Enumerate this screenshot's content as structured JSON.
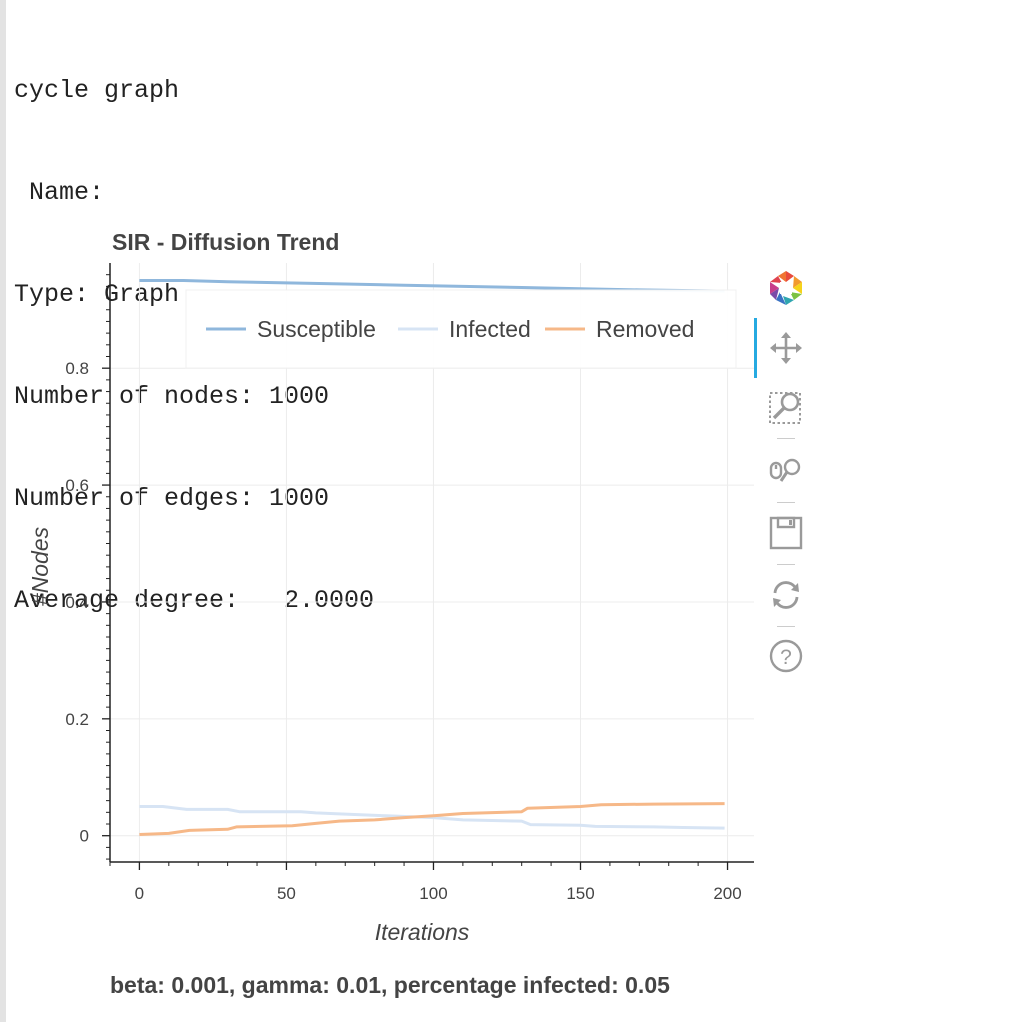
{
  "console": {
    "lines": [
      "cycle graph",
      " Name: ",
      "Type: Graph",
      "Number of nodes: 1000",
      "Number of edges: 1000",
      "Average degree:   2.0000"
    ]
  },
  "caption": "beta: 0.001, gamma: 0.01, percentage infected: 0.05",
  "toolbar": {
    "tools": [
      "bokeh-logo-icon",
      "pan-icon",
      "box-zoom-icon",
      "wheel-zoom-icon",
      "save-icon",
      "reset-icon",
      "help-icon"
    ],
    "active": "pan"
  },
  "colors": {
    "susceptible": "#8fb7dc",
    "infected": "#d7e4f4",
    "removed": "#f6b888",
    "active_tool": "#26aae1"
  },
  "chart_data": {
    "type": "line",
    "title": "SIR - Diffusion Trend",
    "xlabel": "Iterations",
    "ylabel": "#Nodes",
    "xlim": [
      -10,
      209
    ],
    "ylim": [
      -0.045,
      0.98
    ],
    "x_ticks": [
      0,
      50,
      100,
      150,
      200
    ],
    "x_tick_labels": [
      "0",
      "50",
      "100",
      "150",
      "200"
    ],
    "y_ticks": [
      0,
      0.2,
      0.4,
      0.6,
      0.8
    ],
    "y_tick_labels": [
      "0",
      "0.2",
      "0.4",
      "0.6",
      "0.8"
    ],
    "grid": true,
    "legend_position": "top",
    "series": [
      {
        "name": "Susceptible",
        "color": "#8fb7dc",
        "x": [
          0,
          15,
          30,
          50,
          70,
          90,
          110,
          130,
          150,
          170,
          199
        ],
        "y": [
          0.95,
          0.95,
          0.948,
          0.946,
          0.944,
          0.942,
          0.94,
          0.938,
          0.936,
          0.934,
          0.932
        ]
      },
      {
        "name": "Infected",
        "color": "#d7e4f4",
        "x": [
          0,
          8,
          16,
          30,
          34,
          55,
          60,
          70,
          84,
          100,
          110,
          130,
          133,
          150,
          155,
          175,
          185,
          199
        ],
        "y": [
          0.05,
          0.05,
          0.045,
          0.045,
          0.041,
          0.041,
          0.039,
          0.037,
          0.034,
          0.031,
          0.027,
          0.025,
          0.019,
          0.018,
          0.016,
          0.015,
          0.014,
          0.013
        ]
      },
      {
        "name": "Removed",
        "color": "#f6b888",
        "x": [
          0,
          10,
          17,
          30,
          33,
          52,
          60,
          68,
          80,
          90,
          100,
          110,
          130,
          132,
          150,
          157,
          175,
          199
        ],
        "y": [
          0.002,
          0.004,
          0.009,
          0.011,
          0.015,
          0.017,
          0.021,
          0.025,
          0.027,
          0.031,
          0.034,
          0.038,
          0.041,
          0.047,
          0.05,
          0.053,
          0.054,
          0.055
        ]
      }
    ]
  }
}
